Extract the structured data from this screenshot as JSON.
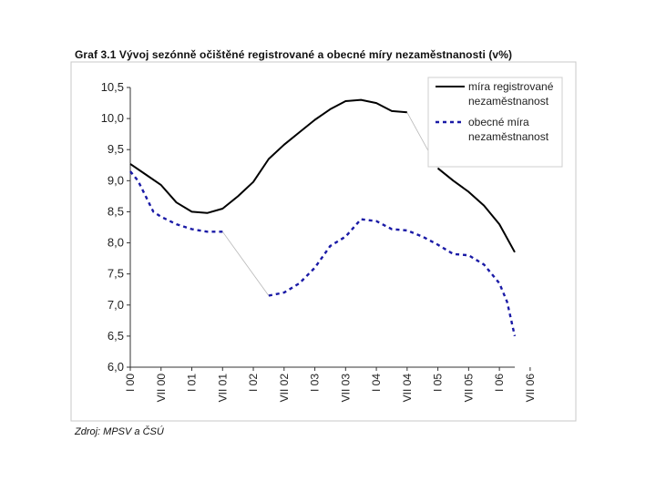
{
  "chart_data": {
    "type": "line",
    "title": "Graf 3.1  Vývoj sezónně očištěné registrované a obecné míry nezaměstnanosti (v%)",
    "source": "Zdroj: MPSV a ČSÚ",
    "xlabel": "",
    "ylabel": "",
    "ylim": [
      6.0,
      10.5
    ],
    "yticks": [
      "6,0",
      "6,5",
      "7,0",
      "7,5",
      "8,0",
      "8,5",
      "9,0",
      "9,5",
      "10,0",
      "10,5"
    ],
    "xlim": [
      0,
      25
    ],
    "categories": [
      "I 00",
      "VII 00",
      "I 01",
      "VII 01",
      "I 02",
      "VII 02",
      "I 03",
      "VII 03",
      "I 04",
      "VII 04",
      "I 05",
      "VII 05",
      "I 06",
      "VII 06"
    ],
    "category_x": [
      0,
      2,
      4,
      6,
      8,
      10,
      12,
      14,
      16,
      18,
      20,
      22,
      24,
      26
    ],
    "legend_position": "top-right",
    "series": [
      {
        "name": "míra registrované nezaměstnanost",
        "color": "#000000",
        "style": "solid",
        "segments": [
          {
            "x": [
              0,
              1,
              2,
              3,
              4,
              5,
              6,
              7,
              8,
              9,
              10,
              11,
              12,
              13,
              14,
              15,
              16,
              17,
              18
            ],
            "y": [
              9.27,
              9.1,
              8.93,
              8.65,
              8.5,
              8.48,
              8.55,
              8.75,
              8.98,
              9.35,
              9.58,
              9.78,
              9.98,
              10.15,
              10.28,
              10.3,
              10.25,
              10.12,
              10.1
            ]
          },
          {
            "x": [
              20,
              21,
              22,
              23,
              24,
              25
            ],
            "y": [
              9.2,
              9.0,
              8.82,
              8.6,
              8.3,
              7.85
            ]
          }
        ],
        "connector": {
          "x": [
            18,
            20
          ],
          "y": [
            10.1,
            9.2
          ]
        }
      },
      {
        "name": "obecné míra nezaměstnanost",
        "color": "#1a1aa6",
        "style": "dashed",
        "segments": [
          {
            "x": [
              0,
              0.5,
              1,
              1.5,
              2,
              3,
              4,
              5,
              6
            ],
            "y": [
              9.15,
              9.0,
              8.75,
              8.5,
              8.42,
              8.3,
              8.22,
              8.18,
              8.18
            ]
          },
          {
            "x": [
              9,
              10,
              11,
              12,
              13,
              14,
              15,
              16,
              17,
              18,
              19,
              20,
              21,
              22,
              23,
              24,
              24.5,
              25
            ],
            "y": [
              7.15,
              7.2,
              7.35,
              7.6,
              7.95,
              8.1,
              8.38,
              8.35,
              8.22,
              8.2,
              8.1,
              7.97,
              7.82,
              7.8,
              7.65,
              7.35,
              7.05,
              6.5
            ]
          }
        ],
        "connector": {
          "x": [
            6,
            9
          ],
          "y": [
            8.18,
            7.15
          ]
        }
      }
    ]
  }
}
